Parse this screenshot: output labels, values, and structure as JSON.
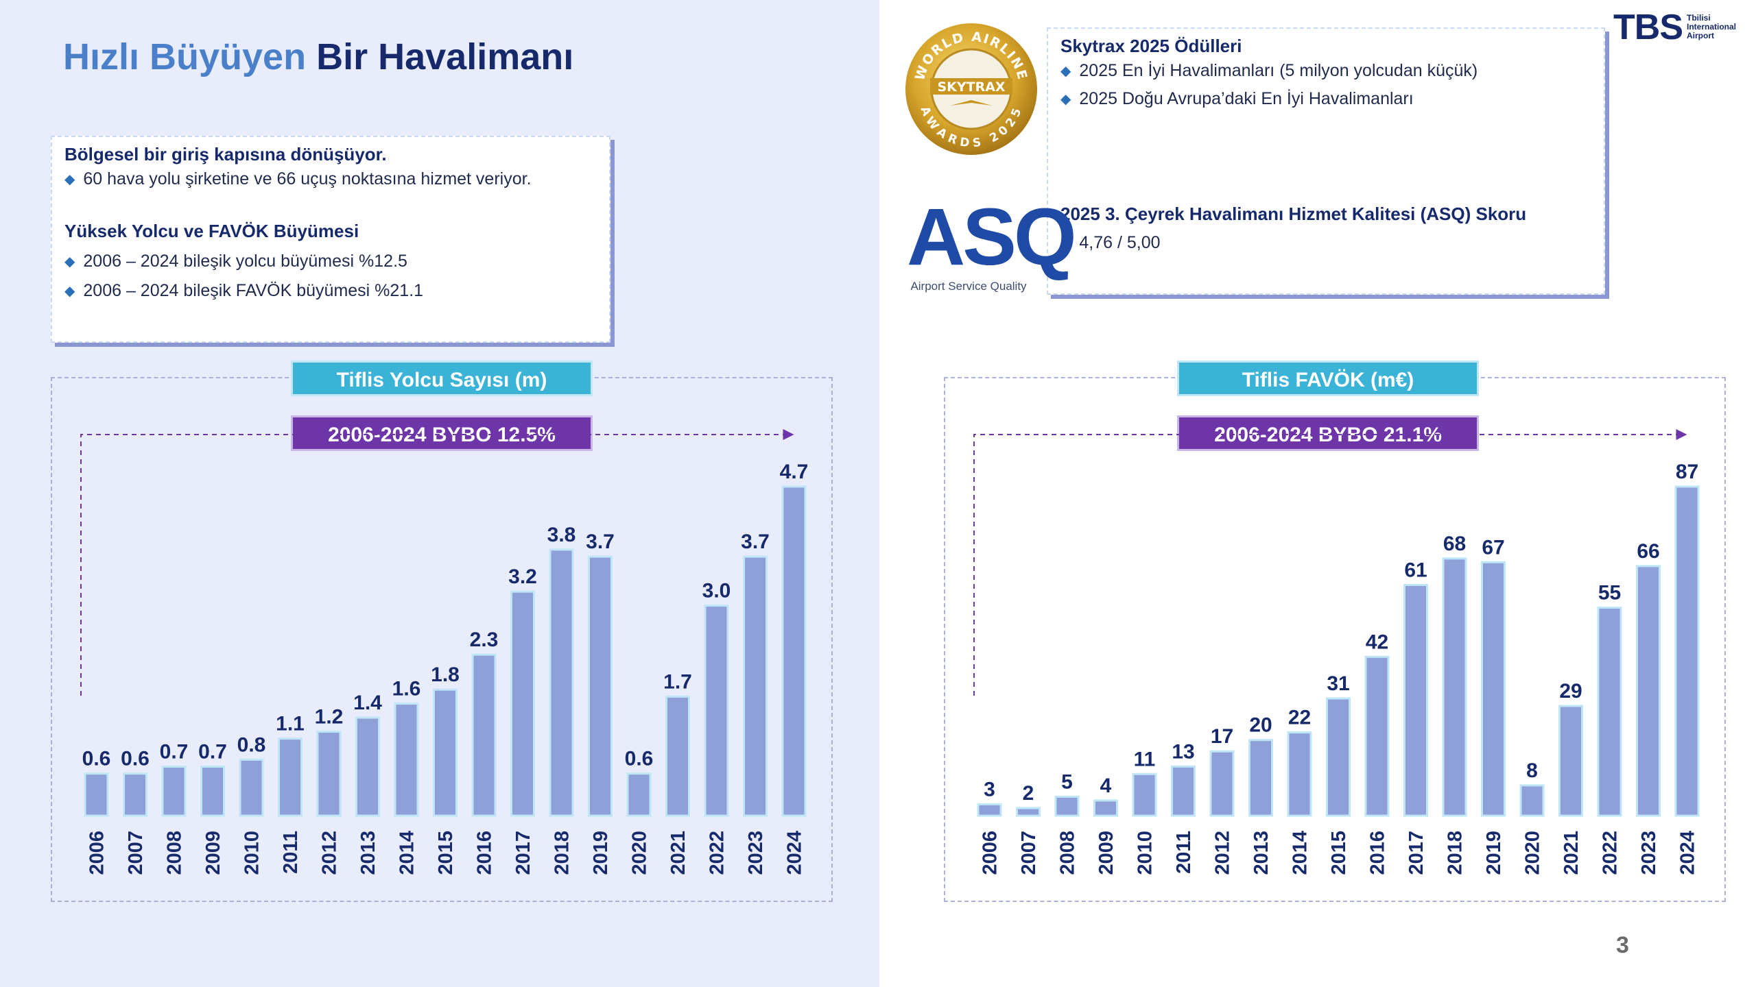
{
  "page": {
    "title_part1": "Hızlı Büyüyen",
    "title_part2": "Bir Havalimanı",
    "page_number": "3"
  },
  "logo": {
    "text": "TBS",
    "subtitle": "Tbilisi\nInternational\nAirport"
  },
  "info_card": {
    "heading1": "Bölgesel bir giriş kapısına dönüşüyor.",
    "bullets1": [
      "60 hava yolu şirketine ve 66 uçuş noktasına hizmet veriyor."
    ],
    "heading2": "Yüksek Yolcu ve FAVÖK Büyümesi",
    "bullets2": [
      "2006 – 2024 bileşik yolcu büyümesi %12.5",
      "2006 – 2024 bileşik FAVÖK büyümesi  %21.1"
    ]
  },
  "awards_card": {
    "heading1": "Skytrax 2025 Ödülleri",
    "bullets1": [
      "2025 En İyi Havalimanları (5 milyon yolcudan küçük)",
      "2025 Doğu Avrupa’daki En İyi Havalimanları"
    ],
    "heading2": "2025 3. Çeyrek  Havalimanı Hizmet Kalitesi (ASQ) Skoru",
    "bullets2": [
      "4,76 / 5,00"
    ]
  },
  "skytrax_badge": {
    "top_text": "WORLD AIRLINE",
    "brand": "SKYTRAX",
    "bottom_text": "AWARDS 2025"
  },
  "asq_logo": {
    "mark": "ASQ",
    "sub": "Airport Service Quality"
  },
  "colors": {
    "bar": "#8f9fd8",
    "title_box": "#3bb3d6",
    "cagr_box": "#6d35a8",
    "dark_text": "#162a6b"
  },
  "chart_data": [
    {
      "type": "bar",
      "title": "Tiflis Yolcu Sayısı (m)",
      "annotation": "2006-2024 BYBO 12.5%",
      "categories": [
        "2006",
        "2007",
        "2008",
        "2009",
        "2010",
        "2011",
        "2012",
        "2013",
        "2014",
        "2015",
        "2016",
        "2017",
        "2018",
        "2019",
        "2020",
        "2021",
        "2022",
        "2023",
        "2024"
      ],
      "values": [
        0.6,
        0.6,
        0.7,
        0.7,
        0.8,
        1.1,
        1.2,
        1.4,
        1.6,
        1.8,
        2.3,
        3.2,
        3.8,
        3.7,
        0.6,
        1.7,
        3.0,
        3.7,
        4.7
      ],
      "labels": [
        "0.6",
        "0.6",
        "0.7",
        "0.7",
        "0.8",
        "1.1",
        "1.2",
        "1.4",
        "1.6",
        "1.8",
        "2.3",
        "3.2",
        "3.8",
        "3.7",
        "0.6",
        "1.7",
        "3.0",
        "3.7",
        "4.7"
      ],
      "xlabel": "",
      "ylabel": "",
      "ylim": [
        0,
        4.7
      ]
    },
    {
      "type": "bar",
      "title": "Tiflis FAVÖK (m€)",
      "annotation": "2006-2024 BYBO 21.1%",
      "categories": [
        "2006",
        "2007",
        "2008",
        "2009",
        "2010",
        "2011",
        "2012",
        "2013",
        "2014",
        "2015",
        "2016",
        "2017",
        "2018",
        "2019",
        "2020",
        "2021",
        "2022",
        "2023",
        "2024"
      ],
      "values": [
        3,
        2,
        5,
        4,
        11,
        13,
        17,
        20,
        22,
        31,
        42,
        61,
        68,
        67,
        8,
        29,
        55,
        66,
        87
      ],
      "labels": [
        "3",
        "2",
        "5",
        "4",
        "11",
        "13",
        "17",
        "20",
        "22",
        "31",
        "42",
        "61",
        "68",
        "67",
        "8",
        "29",
        "55",
        "66",
        "87"
      ],
      "xlabel": "",
      "ylabel": "",
      "ylim": [
        0,
        87
      ]
    }
  ]
}
